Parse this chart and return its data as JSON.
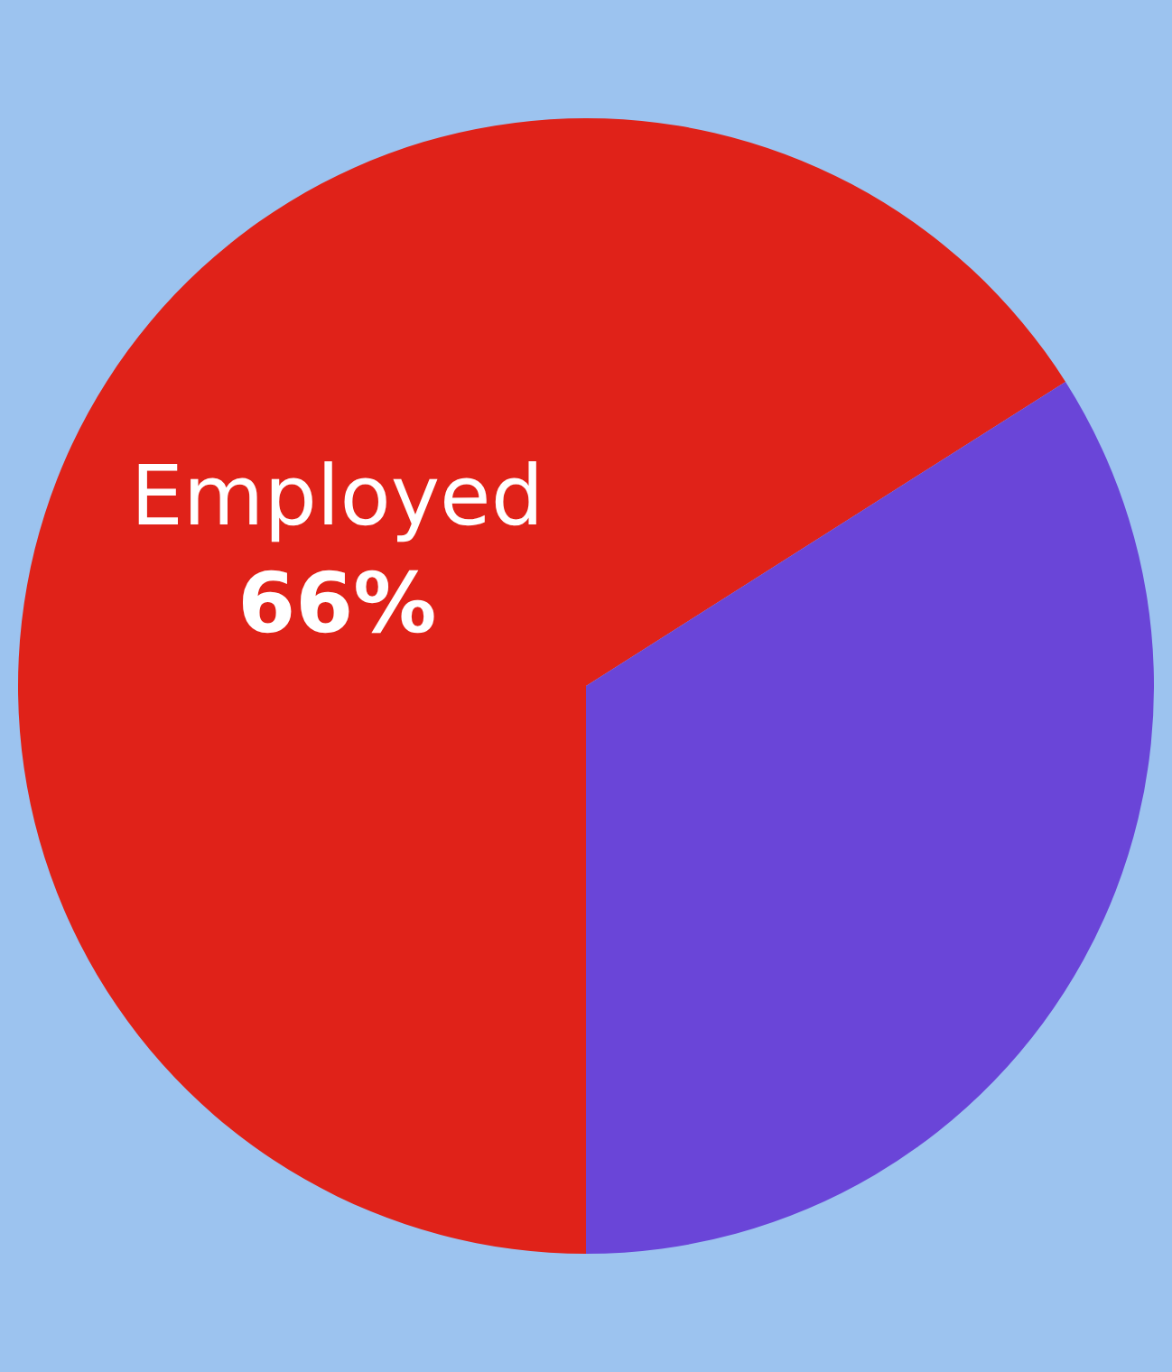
{
  "chart_data": {
    "type": "pie",
    "categories": [
      "Employed",
      null
    ],
    "values": [
      66,
      34
    ],
    "colors": [
      "#e02219",
      "#6a45d8"
    ],
    "value_labels": [
      "66%",
      null
    ]
  }
}
